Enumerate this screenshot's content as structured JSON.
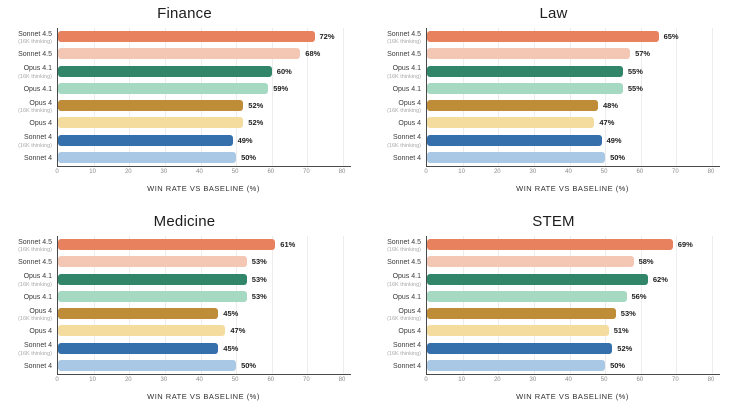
{
  "page": {
    "background": "#ffffff"
  },
  "series_labels": [
    {
      "label": "Sonnet 4.5",
      "sub": "(16K thinking)"
    },
    {
      "label": "Sonnet 4.5",
      "sub": ""
    },
    {
      "label": "Opus 4.1",
      "sub": "(16K thinking)"
    },
    {
      "label": "Opus 4.1",
      "sub": ""
    },
    {
      "label": "Opus 4",
      "sub": "(16K thinking)"
    },
    {
      "label": "Opus 4",
      "sub": ""
    },
    {
      "label": "Sonnet 4",
      "sub": "(16K thinking)"
    },
    {
      "label": "Sonnet 4",
      "sub": ""
    }
  ],
  "bar_colors": [
    "#E8815E",
    "#F4C7B5",
    "#31866A",
    "#A5D9C2",
    "#BF8C38",
    "#F4DB9E",
    "#3570AC",
    "#A9C8E6"
  ],
  "chart_data": [
    {
      "type": "bar",
      "orientation": "horizontal",
      "title": "Finance",
      "categories": [
        "Sonnet 4.5 (16K thinking)",
        "Sonnet 4.5",
        "Opus 4.1 (16K thinking)",
        "Opus 4.1",
        "Opus 4 (16K thinking)",
        "Opus 4",
        "Sonnet 4 (16K thinking)",
        "Sonnet 4"
      ],
      "values": [
        72,
        68,
        60,
        59,
        52,
        52,
        49,
        50
      ],
      "value_suffix": "%",
      "xlabel": "WIN RATE VS BASELINE (%)",
      "xlim": [
        0,
        80
      ],
      "xticks": [
        0,
        10,
        20,
        30,
        40,
        50,
        60,
        70,
        80
      ],
      "grid": true,
      "legend": "none"
    },
    {
      "type": "bar",
      "orientation": "horizontal",
      "title": "Law",
      "categories": [
        "Sonnet 4.5 (16K thinking)",
        "Sonnet 4.5",
        "Opus 4.1 (16K thinking)",
        "Opus 4.1",
        "Opus 4 (16K thinking)",
        "Opus 4",
        "Sonnet 4 (16K thinking)",
        "Sonnet 4"
      ],
      "values": [
        65,
        57,
        55,
        55,
        48,
        47,
        49,
        50
      ],
      "value_suffix": "%",
      "xlabel": "WIN RATE VS BASELINE (%)",
      "xlim": [
        0,
        80
      ],
      "xticks": [
        0,
        10,
        20,
        30,
        40,
        50,
        60,
        70,
        80
      ],
      "grid": true,
      "legend": "none"
    },
    {
      "type": "bar",
      "orientation": "horizontal",
      "title": "Medicine",
      "categories": [
        "Sonnet 4.5 (16K thinking)",
        "Sonnet 4.5",
        "Opus 4.1 (16K thinking)",
        "Opus 4.1",
        "Opus 4 (16K thinking)",
        "Opus 4",
        "Sonnet 4 (16K thinking)",
        "Sonnet 4"
      ],
      "values": [
        61,
        53,
        53,
        53,
        45,
        47,
        45,
        50
      ],
      "value_suffix": "%",
      "xlabel": "WIN RATE VS BASELINE (%)",
      "xlim": [
        0,
        80
      ],
      "xticks": [
        0,
        10,
        20,
        30,
        40,
        50,
        60,
        70,
        80
      ],
      "grid": true,
      "legend": "none"
    },
    {
      "type": "bar",
      "orientation": "horizontal",
      "title": "STEM",
      "categories": [
        "Sonnet 4.5 (16K thinking)",
        "Sonnet 4.5",
        "Opus 4.1 (16K thinking)",
        "Opus 4.1",
        "Opus 4 (16K thinking)",
        "Opus 4",
        "Sonnet 4 (16K thinking)",
        "Sonnet 4"
      ],
      "values": [
        69,
        58,
        62,
        56,
        53,
        51,
        52,
        50
      ],
      "value_suffix": "%",
      "xlabel": "WIN RATE VS BASELINE (%)",
      "xlim": [
        0,
        80
      ],
      "xticks": [
        0,
        10,
        20,
        30,
        40,
        50,
        60,
        70,
        80
      ],
      "grid": true,
      "legend": "none"
    }
  ]
}
